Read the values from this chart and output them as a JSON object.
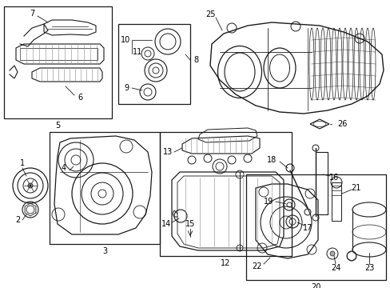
{
  "background_color": "#ffffff",
  "figure_width": 4.89,
  "figure_height": 3.6,
  "dpi": 100,
  "line_color": "#1a1a1a",
  "text_color": "#000000",
  "font_size": 7.0
}
